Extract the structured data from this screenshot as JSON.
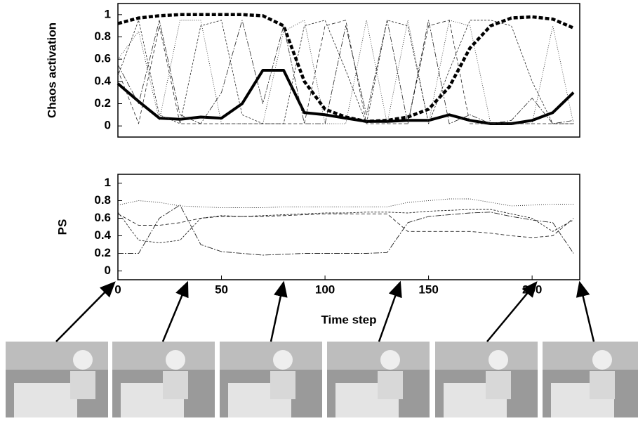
{
  "chart_data": [
    {
      "type": "line",
      "ylabel": "Chaos activation",
      "x": [
        0,
        10,
        20,
        30,
        40,
        50,
        60,
        70,
        80,
        90,
        100,
        110,
        120,
        130,
        140,
        150,
        160,
        170,
        180,
        190,
        200,
        210,
        220
      ],
      "xlim": [
        0,
        223
      ],
      "ylim": [
        -0.1,
        1.1
      ],
      "yticks": [
        0,
        0.2,
        0.4,
        0.6,
        0.8,
        1
      ],
      "series": [
        {
          "color": "#000000",
          "width": 4,
          "dash": "none",
          "values": [
            0.38,
            0.22,
            0.07,
            0.06,
            0.08,
            0.07,
            0.2,
            0.5,
            0.5,
            0.12,
            0.1,
            0.07,
            0.04,
            0.04,
            0.05,
            0.05,
            0.1,
            0.05,
            0.02,
            0.02,
            0.05,
            0.12,
            0.3
          ]
        },
        {
          "color": "#000000",
          "width": 4.5,
          "dash": "6 3",
          "values": [
            0.92,
            0.97,
            0.99,
            1,
            1,
            1,
            1,
            0.99,
            0.9,
            0.4,
            0.15,
            0.08,
            0.04,
            0.05,
            0.08,
            0.15,
            0.35,
            0.7,
            0.9,
            0.97,
            0.98,
            0.96,
            0.88
          ]
        },
        {
          "color": "#222222",
          "width": 0.8,
          "dash": "3 2",
          "values": [
            0.45,
            0.95,
            0.1,
            0.02,
            0.9,
            0.95,
            0.1,
            0.02,
            0.02,
            0.9,
            0.95,
            0.5,
            0.02,
            0.95,
            0.9,
            0.02,
            0.5,
            0.95,
            0.95,
            0.9,
            0.4,
            0.02,
            0.02
          ]
        },
        {
          "color": "#222222",
          "width": 0.8,
          "dash": "8 2 2 2",
          "values": [
            0.55,
            0.2,
            0.95,
            0.1,
            0.02,
            0.3,
            0.95,
            0.2,
            0.9,
            0.02,
            0.02,
            0.9,
            0.1,
            0.95,
            0.02,
            0.95,
            0.02,
            0.1,
            0.02,
            0.05,
            0.25,
            0.02,
            0.05
          ]
        },
        {
          "color": "#222222",
          "width": 0.8,
          "dash": "1 2",
          "values": [
            0.6,
            0.85,
            0.05,
            0.95,
            0.95,
            0.02,
            0.02,
            0.02,
            0.85,
            0.95,
            0.02,
            0.02,
            0.95,
            0.02,
            0.95,
            0.02,
            0.95,
            0.9,
            0.02,
            0.02,
            0.02,
            0.9,
            0.02
          ]
        },
        {
          "color": "#222222",
          "width": 0.8,
          "dash": "5 3",
          "values": [
            0.5,
            0.02,
            0.9,
            0.02,
            0.02,
            0.02,
            0.02,
            0.02,
            0.02,
            0.02,
            0.9,
            0.95,
            0.02,
            0.02,
            0.02,
            0.9,
            0.95,
            0.02,
            0.02,
            0.02,
            0.02,
            0.02,
            0.02
          ]
        }
      ]
    },
    {
      "type": "line",
      "ylabel": "PS",
      "xlabel": "Time step",
      "x": [
        0,
        10,
        20,
        30,
        40,
        50,
        60,
        70,
        80,
        90,
        100,
        110,
        120,
        130,
        140,
        150,
        160,
        170,
        180,
        190,
        200,
        210,
        220
      ],
      "xlim": [
        0,
        223
      ],
      "xticks": [
        0,
        50,
        100,
        150,
        200
      ],
      "ylim": [
        -0.1,
        1.1
      ],
      "yticks": [
        0,
        0.2,
        0.4,
        0.6,
        0.8,
        1
      ],
      "series": [
        {
          "color": "#222222",
          "width": 0.9,
          "dash": "8 2 2 2",
          "values": [
            0.2,
            0.2,
            0.6,
            0.75,
            0.3,
            0.22,
            0.2,
            0.18,
            0.19,
            0.2,
            0.2,
            0.2,
            0.2,
            0.21,
            0.55,
            0.62,
            0.64,
            0.66,
            0.67,
            0.62,
            0.58,
            0.55,
            0.2
          ]
        },
        {
          "color": "#222222",
          "width": 0.9,
          "dash": "1 2",
          "values": [
            0.75,
            0.8,
            0.78,
            0.74,
            0.73,
            0.72,
            0.72,
            0.72,
            0.73,
            0.73,
            0.73,
            0.73,
            0.73,
            0.73,
            0.78,
            0.8,
            0.82,
            0.82,
            0.78,
            0.74,
            0.75,
            0.76,
            0.76
          ]
        },
        {
          "color": "#222222",
          "width": 0.9,
          "dash": "5 3",
          "values": [
            0.65,
            0.52,
            0.52,
            0.55,
            0.6,
            0.62,
            0.62,
            0.62,
            0.63,
            0.64,
            0.65,
            0.65,
            0.65,
            0.65,
            0.45,
            0.45,
            0.45,
            0.45,
            0.43,
            0.4,
            0.38,
            0.4,
            0.6
          ]
        },
        {
          "color": "#222222",
          "width": 0.9,
          "dash": "3 2",
          "values": [
            0.67,
            0.35,
            0.32,
            0.35,
            0.6,
            0.63,
            0.62,
            0.63,
            0.64,
            0.65,
            0.66,
            0.66,
            0.67,
            0.67,
            0.66,
            0.68,
            0.69,
            0.7,
            0.7,
            0.65,
            0.6,
            0.45,
            0.58
          ]
        }
      ]
    }
  ]
}
